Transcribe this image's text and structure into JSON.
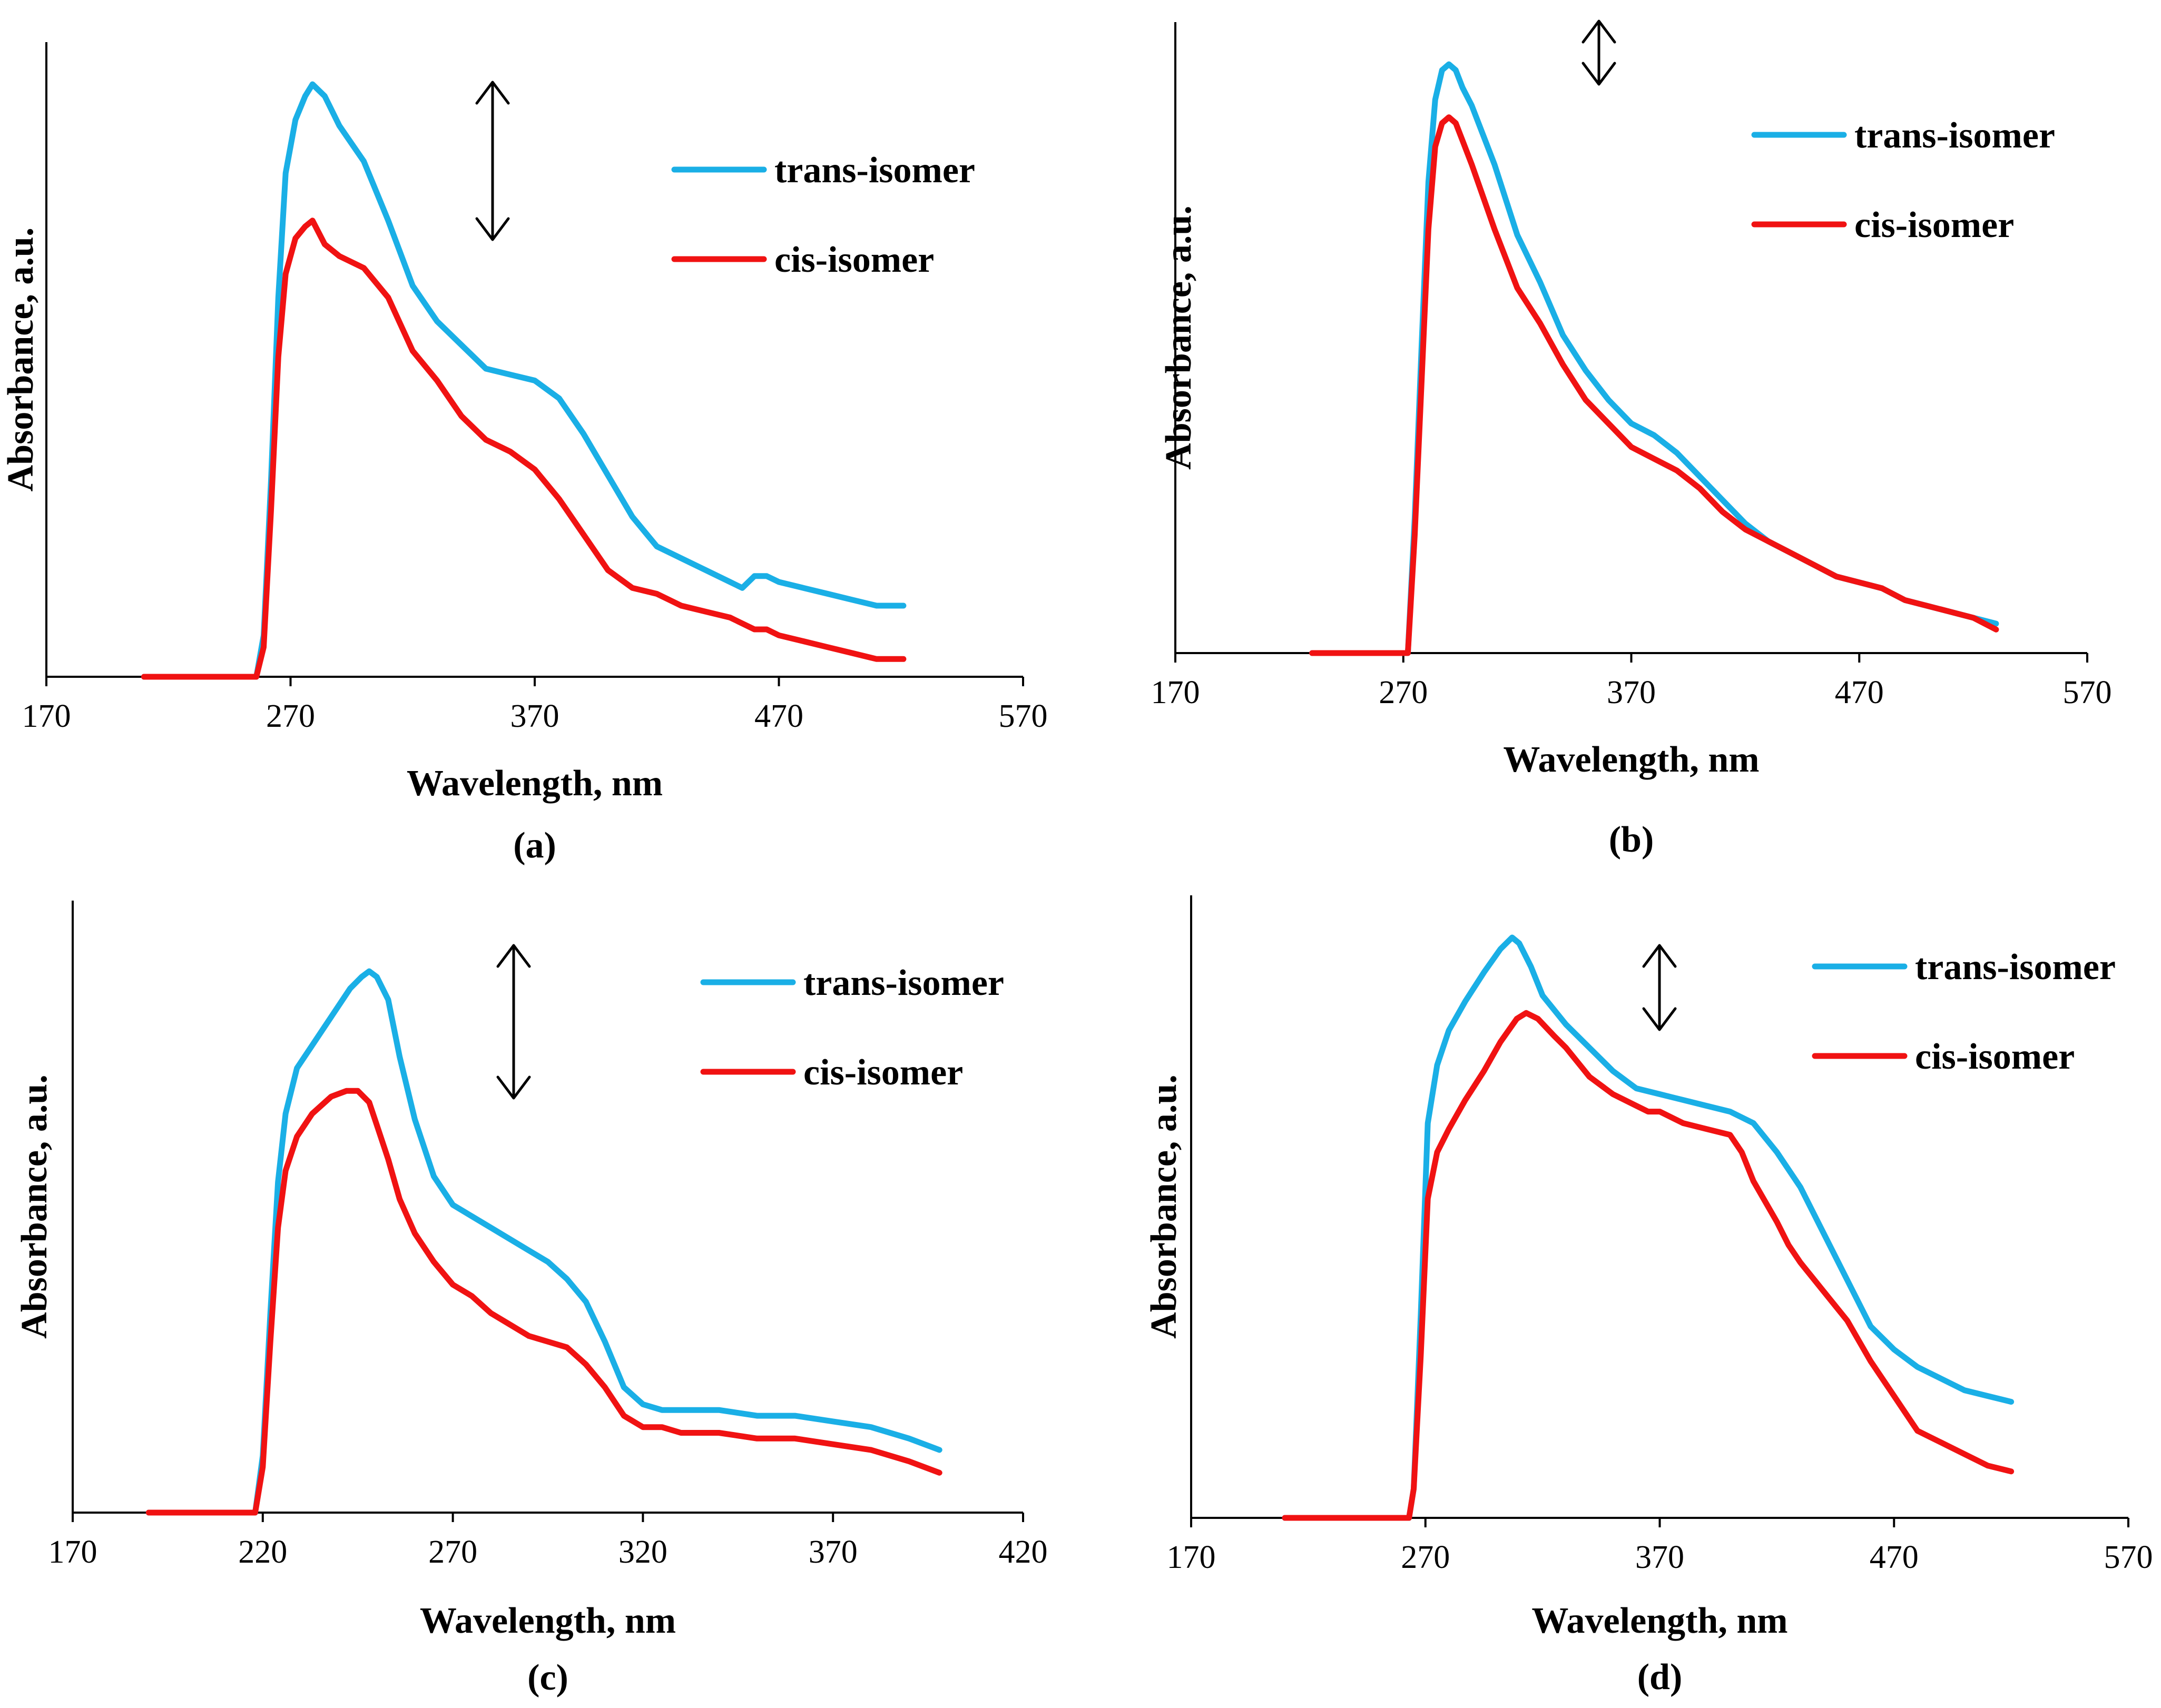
{
  "colors": {
    "trans": "#1AAFE6",
    "cis": "#F01212",
    "axis": "#000000"
  },
  "icons": {
    "double_arrow": "double-headed-arrow-icon"
  },
  "chart_data": [
    {
      "panel": "(a)",
      "type": "line",
      "xlabel": "Wavelength, nm",
      "ylabel": "Absorbance, a.u.",
      "xlim": [
        170,
        570
      ],
      "xticks": [
        170,
        270,
        370,
        470,
        570
      ],
      "ylim": [
        0,
        1
      ],
      "legend": {
        "placement": "top-right"
      },
      "series": [
        {
          "name": "trans-isomer",
          "color_key": "trans",
          "x": [
            210,
            253,
            256,
            259,
            262,
            265,
            268,
            272,
            276,
            279,
            284,
            290,
            300,
            310,
            320,
            330,
            340,
            350,
            360,
            370,
            380,
            390,
            400,
            410,
            420,
            430,
            440,
            450,
            455,
            460,
            465,
            470,
            480,
            490,
            500,
            510,
            521
          ],
          "y": [
            0.0,
            0.0,
            0.0,
            0.07,
            0.33,
            0.64,
            0.85,
            0.94,
            0.98,
            1.0,
            0.98,
            0.93,
            0.87,
            0.77,
            0.66,
            0.6,
            0.56,
            0.52,
            0.51,
            0.5,
            0.47,
            0.41,
            0.34,
            0.27,
            0.22,
            0.2,
            0.18,
            0.16,
            0.15,
            0.17,
            0.17,
            0.16,
            0.15,
            0.14,
            0.13,
            0.12,
            0.12
          ]
        },
        {
          "name": "cis-isomer",
          "color_key": "cis",
          "x": [
            210,
            253,
            256,
            259,
            262,
            265,
            268,
            272,
            276,
            279,
            284,
            290,
            300,
            310,
            320,
            330,
            340,
            350,
            360,
            370,
            380,
            390,
            400,
            410,
            420,
            430,
            440,
            450,
            455,
            460,
            465,
            470,
            480,
            490,
            500,
            510,
            521
          ],
          "y": [
            0.0,
            0.0,
            0.0,
            0.05,
            0.28,
            0.54,
            0.68,
            0.74,
            0.76,
            0.77,
            0.73,
            0.71,
            0.69,
            0.64,
            0.55,
            0.5,
            0.44,
            0.4,
            0.38,
            0.35,
            0.3,
            0.24,
            0.18,
            0.15,
            0.14,
            0.12,
            0.11,
            0.1,
            0.09,
            0.08,
            0.08,
            0.07,
            0.06,
            0.05,
            0.04,
            0.03,
            0.03
          ]
        }
      ]
    },
    {
      "panel": "(b)",
      "type": "line",
      "xlabel": "Wavelength, nm",
      "ylabel": "Absorbance, a.u.",
      "xlim": [
        170,
        570
      ],
      "xticks": [
        170,
        270,
        370,
        470,
        570
      ],
      "ylim": [
        0,
        1
      ],
      "legend": {
        "placement": "top-right"
      },
      "series": [
        {
          "name": "trans-isomer",
          "color_key": "trans",
          "x": [
            230,
            270,
            272,
            275,
            278,
            281,
            284,
            287,
            290,
            293,
            296,
            300,
            310,
            320,
            330,
            340,
            350,
            360,
            370,
            380,
            390,
            400,
            410,
            420,
            430,
            440,
            450,
            460,
            470,
            480,
            490,
            500,
            510,
            520,
            530
          ],
          "y": [
            0.0,
            0.0,
            0.0,
            0.23,
            0.52,
            0.8,
            0.94,
            0.99,
            1.0,
            0.99,
            0.96,
            0.93,
            0.83,
            0.71,
            0.63,
            0.54,
            0.48,
            0.43,
            0.39,
            0.37,
            0.34,
            0.3,
            0.26,
            0.22,
            0.19,
            0.17,
            0.15,
            0.13,
            0.12,
            0.11,
            0.09,
            0.08,
            0.07,
            0.06,
            0.05
          ]
        },
        {
          "name": "cis-isomer",
          "color_key": "cis",
          "x": [
            230,
            270,
            272,
            275,
            278,
            281,
            284,
            287,
            290,
            293,
            296,
            300,
            310,
            320,
            330,
            340,
            350,
            360,
            370,
            380,
            390,
            400,
            410,
            420,
            430,
            440,
            450,
            460,
            470,
            480,
            490,
            500,
            510,
            520,
            530
          ],
          "y": [
            0.0,
            0.0,
            0.0,
            0.2,
            0.46,
            0.72,
            0.86,
            0.9,
            0.91,
            0.9,
            0.87,
            0.83,
            0.72,
            0.62,
            0.56,
            0.49,
            0.43,
            0.39,
            0.35,
            0.33,
            0.31,
            0.28,
            0.24,
            0.21,
            0.19,
            0.17,
            0.15,
            0.13,
            0.12,
            0.11,
            0.09,
            0.08,
            0.07,
            0.06,
            0.04
          ]
        }
      ]
    },
    {
      "panel": "(c)",
      "type": "line",
      "xlabel": "Wavelength, nm",
      "ylabel": "Absorbance, a.u.",
      "xlim": [
        170,
        420
      ],
      "xticks": [
        170,
        220,
        270,
        320,
        370,
        420
      ],
      "ylim": [
        0,
        1
      ],
      "legend": {
        "placement": "top-right"
      },
      "series": [
        {
          "name": "trans-isomer",
          "color_key": "trans",
          "x": [
            190,
            212,
            218,
            220,
            222,
            224,
            226,
            229,
            233,
            238,
            243,
            246,
            248,
            250,
            253,
            256,
            260,
            265,
            270,
            275,
            280,
            285,
            290,
            295,
            300,
            305,
            310,
            315,
            320,
            325,
            330,
            340,
            350,
            360,
            370,
            380,
            390,
            398
          ],
          "y": [
            0.0,
            0.0,
            0.0,
            0.1,
            0.35,
            0.58,
            0.7,
            0.78,
            0.82,
            0.87,
            0.92,
            0.94,
            0.95,
            0.94,
            0.9,
            0.8,
            0.69,
            0.59,
            0.54,
            0.52,
            0.5,
            0.48,
            0.46,
            0.44,
            0.41,
            0.37,
            0.3,
            0.22,
            0.19,
            0.18,
            0.18,
            0.18,
            0.17,
            0.17,
            0.16,
            0.15,
            0.13,
            0.11
          ]
        },
        {
          "name": "cis-isomer",
          "color_key": "cis",
          "x": [
            190,
            212,
            218,
            220,
            222,
            224,
            226,
            229,
            233,
            238,
            242,
            245,
            248,
            250,
            253,
            256,
            260,
            265,
            270,
            275,
            280,
            285,
            290,
            295,
            300,
            305,
            310,
            315,
            320,
            325,
            330,
            340,
            350,
            360,
            370,
            380,
            390,
            398
          ],
          "y": [
            0.0,
            0.0,
            0.0,
            0.08,
            0.3,
            0.5,
            0.6,
            0.66,
            0.7,
            0.73,
            0.74,
            0.74,
            0.72,
            0.68,
            0.62,
            0.55,
            0.49,
            0.44,
            0.4,
            0.38,
            0.35,
            0.33,
            0.31,
            0.3,
            0.29,
            0.26,
            0.22,
            0.17,
            0.15,
            0.15,
            0.14,
            0.14,
            0.13,
            0.13,
            0.12,
            0.11,
            0.09,
            0.07
          ]
        }
      ]
    },
    {
      "panel": "(d)",
      "type": "line",
      "xlabel": "Wavelength, nm",
      "ylabel": "Absorbance, a.u.",
      "xlim": [
        170,
        570
      ],
      "xticks": [
        170,
        270,
        370,
        470,
        570
      ],
      "ylim": [
        0,
        1
      ],
      "legend": {
        "placement": "top-right"
      },
      "series": [
        {
          "name": "trans-isomer",
          "color_key": "trans",
          "x": [
            210,
            263,
            265,
            268,
            271,
            275,
            280,
            287,
            295,
            302,
            307,
            310,
            315,
            320,
            330,
            340,
            350,
            360,
            370,
            380,
            390,
            400,
            410,
            420,
            430,
            440,
            450,
            460,
            470,
            480,
            490,
            500,
            510,
            520
          ],
          "y": [
            0.0,
            0.0,
            0.05,
            0.35,
            0.68,
            0.78,
            0.84,
            0.89,
            0.94,
            0.98,
            1.0,
            0.99,
            0.95,
            0.9,
            0.85,
            0.81,
            0.77,
            0.74,
            0.73,
            0.72,
            0.71,
            0.7,
            0.68,
            0.63,
            0.57,
            0.49,
            0.41,
            0.33,
            0.29,
            0.26,
            0.24,
            0.22,
            0.21,
            0.2
          ]
        },
        {
          "name": "cis-isomer",
          "color_key": "cis",
          "x": [
            210,
            263,
            265,
            268,
            271,
            275,
            280,
            287,
            295,
            302,
            309,
            313,
            318,
            325,
            330,
            340,
            350,
            360,
            365,
            370,
            375,
            380,
            390,
            400,
            405,
            410,
            420,
            425,
            430,
            440,
            450,
            460,
            470,
            480,
            490,
            500,
            510,
            520
          ],
          "y": [
            0.0,
            0.0,
            0.05,
            0.28,
            0.55,
            0.63,
            0.67,
            0.72,
            0.77,
            0.82,
            0.86,
            0.87,
            0.86,
            0.83,
            0.81,
            0.76,
            0.73,
            0.71,
            0.7,
            0.7,
            0.69,
            0.68,
            0.67,
            0.66,
            0.63,
            0.58,
            0.51,
            0.47,
            0.44,
            0.39,
            0.34,
            0.27,
            0.21,
            0.15,
            0.13,
            0.11,
            0.09,
            0.08
          ]
        }
      ]
    }
  ]
}
